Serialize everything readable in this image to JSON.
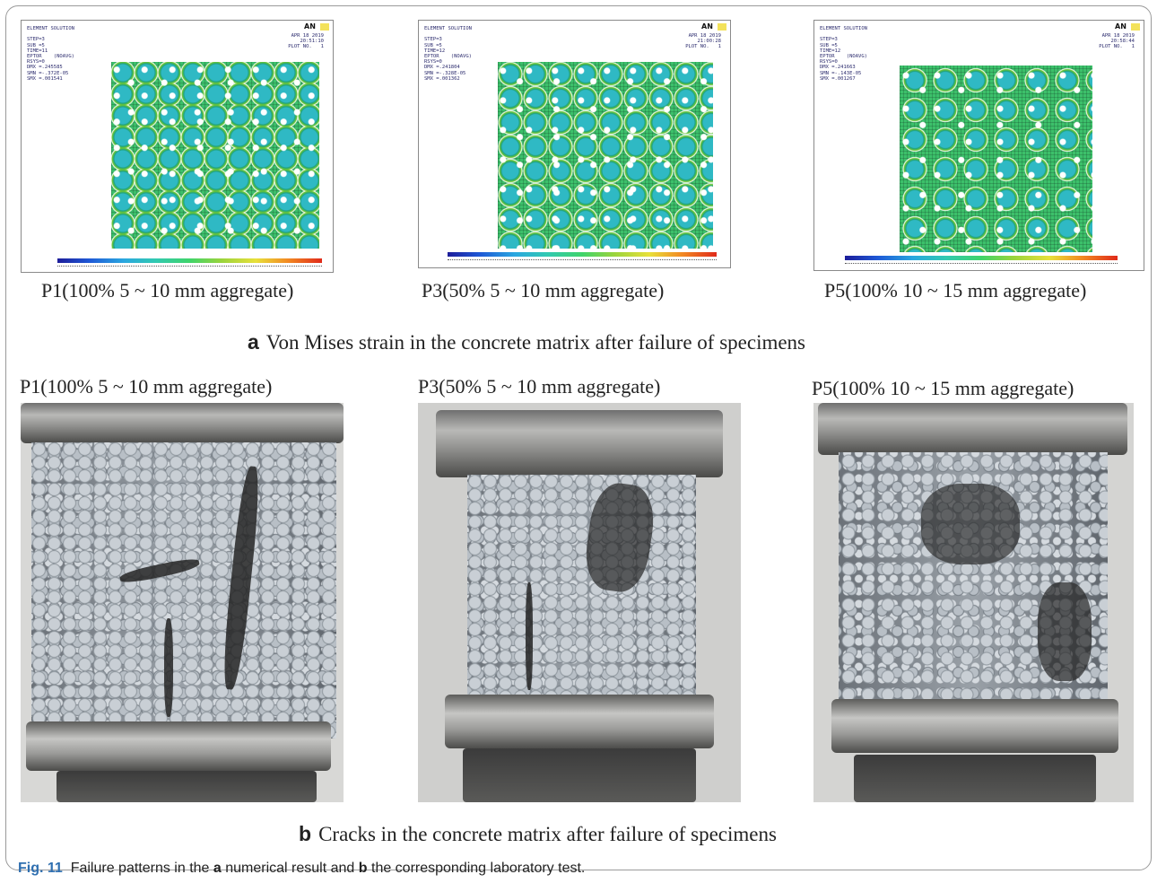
{
  "figure": {
    "label": "Fig. 11",
    "caption_parts": [
      "Failure patterns in the ",
      "a",
      " numerical result and ",
      "b",
      " the corresponding laboratory test."
    ]
  },
  "panel_a": {
    "letter": "a",
    "title": "Von Mises strain in the concrete matrix after failure of specimens",
    "items": [
      {
        "label": "P1(100% 5 ~ 10 mm aggregate)",
        "header_lines": "ELEMENT SOLUTION\n\nSTEP=3\nSUB =5\nTIME=11\nEPTOR    (NOAVG)\nRSYS=0\nDMX =.245585\nSMN =-.372E-05\nSMX =.001541",
        "date_lines": "APR 18 2019\n20:51:10\nPLOT NO.   1",
        "logo": "AN"
      },
      {
        "label": "P3(50% 5 ~ 10 mm aggregate)",
        "header_lines": "ELEMENT SOLUTION\n\nSTEP=3\nSUB =5\nTIME=12\nEPTOR    (NOAVG)\nRSYS=0\nDMX =.241804\nSMN =-.328E-05\nSMX =.001362",
        "date_lines": "APR 18 2019\n21:00:28\nPLOT NO.   1",
        "logo": "AN"
      },
      {
        "label": "P5(100% 10 ~ 15 mm aggregate)",
        "header_lines": "ELEMENT SOLUTION\n\nSTEP=3\nSUB =5\nTIME=12\nEPTOR    (NOAVG)\nRSYS=0\nDMX =.241663\nSMN =-.143E-05\nSMX =.001267",
        "date_lines": "APR 18 2019\n20:58:44\nPLOT NO.   1",
        "logo": "AN"
      }
    ]
  },
  "panel_b": {
    "letter": "b",
    "title": "Cracks in the concrete matrix after failure of specimens",
    "items": [
      {
        "label": "P1(100% 5 ~ 10 mm aggregate)"
      },
      {
        "label": "P3(50% 5 ~ 10 mm aggregate)"
      },
      {
        "label": "P5(100% 10 ~ 15 mm aggregate)"
      }
    ]
  }
}
